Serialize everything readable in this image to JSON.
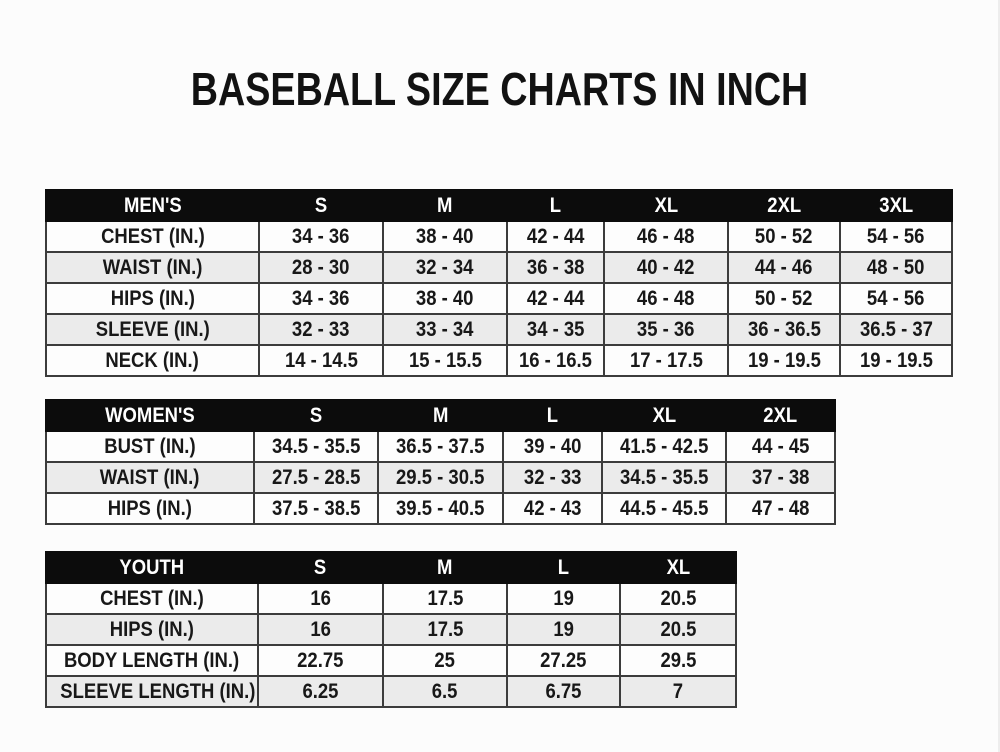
{
  "page": {
    "title": "BASEBALL SIZE CHARTS IN INCH"
  },
  "colors": {
    "page_bg": "#fcfcfc",
    "header_bg": "#0c0c0c",
    "header_text": "#ffffff",
    "row_bg": "#fdfdfd",
    "row_alt_bg": "#ebebeb",
    "grid_border": "#3c3c3c",
    "text": "#181818"
  },
  "chart_data": [
    {
      "type": "table",
      "id": "mens",
      "title": "MEN'S",
      "columns": [
        "MEN'S",
        "S",
        "M",
        "L",
        "XL",
        "2XL",
        "3XL"
      ],
      "rows": [
        [
          "CHEST (IN.)",
          "34 - 36",
          "38 - 40",
          "42 - 44",
          "46 - 48",
          "50 - 52",
          "54 - 56"
        ],
        [
          "WAIST (IN.)",
          "28 - 30",
          "32 - 34",
          "36 - 38",
          "40 - 42",
          "44 - 46",
          "48 - 50"
        ],
        [
          "HIPS (IN.)",
          "34 - 36",
          "38 - 40",
          "42 - 44",
          "46 - 48",
          "50 - 52",
          "54 - 56"
        ],
        [
          "SLEEVE (IN.)",
          "32 - 33",
          "33 - 34",
          "34 - 35",
          "35 - 36",
          "36 - 36.5",
          "36.5 - 37"
        ],
        [
          "NECK (IN.)",
          "14 - 14.5",
          "15 - 15.5",
          "16 - 16.5",
          "17 - 17.5",
          "19 - 19.5",
          "19 - 19.5"
        ]
      ]
    },
    {
      "type": "table",
      "id": "womens",
      "title": "WOMEN'S",
      "columns": [
        "WOMEN'S",
        "S",
        "M",
        "L",
        "XL",
        "2XL"
      ],
      "rows": [
        [
          "BUST (IN.)",
          "34.5 - 35.5",
          "36.5 - 37.5",
          "39 - 40",
          "41.5 - 42.5",
          "44 - 45"
        ],
        [
          "WAIST (IN.)",
          "27.5 - 28.5",
          "29.5 - 30.5",
          "32 - 33",
          "34.5 - 35.5",
          "37 - 38"
        ],
        [
          "HIPS (IN.)",
          "37.5 - 38.5",
          "39.5 - 40.5",
          "42 - 43",
          "44.5 - 45.5",
          "47 - 48"
        ]
      ]
    },
    {
      "type": "table",
      "id": "youth",
      "title": "YOUTH",
      "columns": [
        "YOUTH",
        "S",
        "M",
        "L",
        "XL"
      ],
      "rows": [
        [
          "CHEST (IN.)",
          "16",
          "17.5",
          "19",
          "20.5"
        ],
        [
          "HIPS (IN.)",
          "16",
          "17.5",
          "19",
          "20.5"
        ],
        [
          "BODY LENGTH (IN.)",
          "22.75",
          "25",
          "27.25",
          "29.5"
        ],
        [
          "SLEEVE LENGTH (IN.)",
          "6.25",
          "6.5",
          "6.75",
          "7"
        ]
      ]
    }
  ]
}
